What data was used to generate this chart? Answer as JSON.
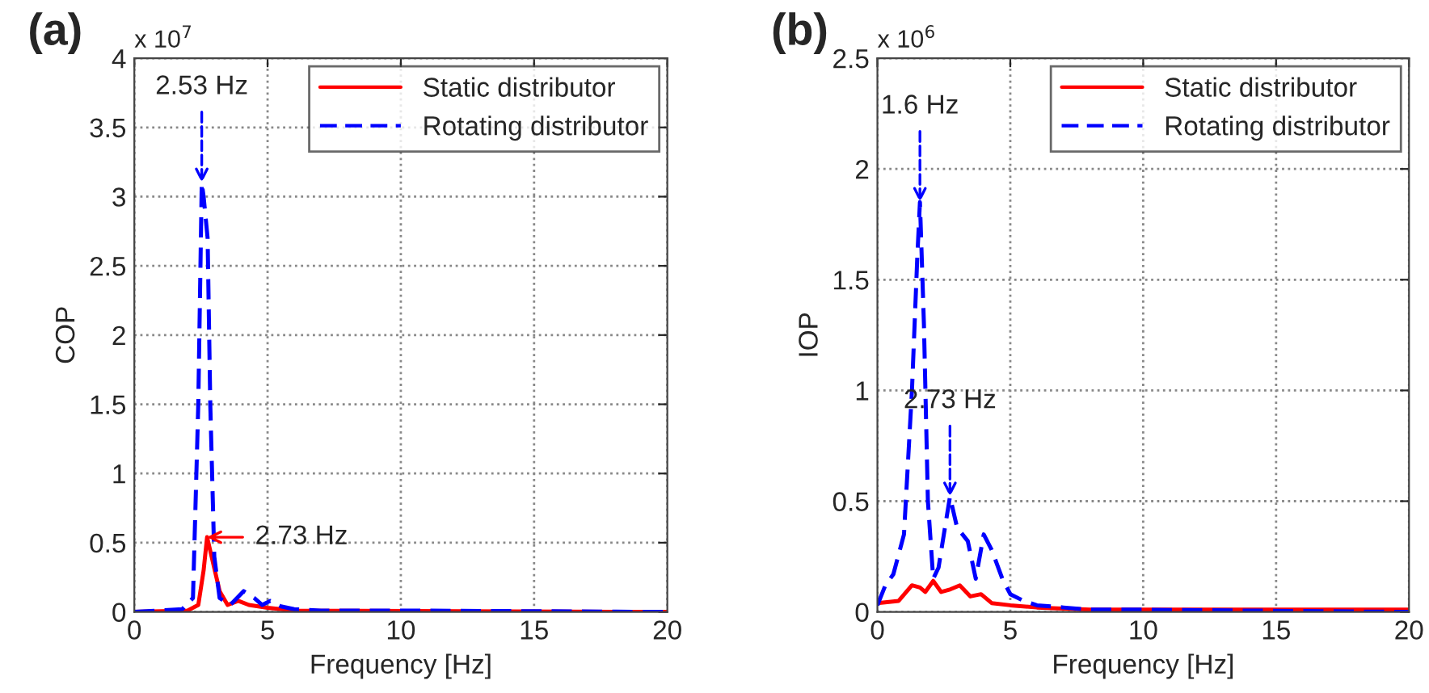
{
  "chart_data": [
    {
      "type": "line",
      "title": "(a)",
      "xlabel": "Frequency [Hz]",
      "ylabel": "COP",
      "xlim": [
        0,
        20
      ],
      "xticks": [
        0,
        5,
        10,
        15,
        20
      ],
      "ylim": [
        0,
        4
      ],
      "yticks": [
        0,
        0.5,
        1,
        1.5,
        2,
        2.5,
        3,
        3.5,
        4
      ],
      "grid": true,
      "legend": "top right",
      "annotations": [
        "x 10$^{7}$",
        {
          "text": "2.53 Hz",
          "x": 2.53,
          "y": 3.1
        },
        {
          "text": "2.73 Hz",
          "x": 2.73,
          "y": 0.54
        }
      ],
      "series": [
        {
          "name": "Static distributor",
          "color": "#ff0000",
          "line_style": "solid",
          "x": [
            0,
            2,
            2.4,
            2.6,
            2.73,
            2.9,
            3.2,
            3.5,
            3.9,
            4.3,
            5,
            6,
            20
          ],
          "values": [
            0,
            0.01,
            0.05,
            0.3,
            0.54,
            0.4,
            0.15,
            0.05,
            0.08,
            0.05,
            0.03,
            0.01,
            0
          ]
        },
        {
          "name": "Rotating distributor",
          "color": "#0000ff",
          "line_style": "dashed",
          "x": [
            0,
            1,
            1.8,
            2.2,
            2.4,
            2.53,
            2.6,
            2.75,
            2.85,
            3,
            3.2,
            3.6,
            4.1,
            4.5,
            4.8,
            5.1,
            5.5,
            6,
            7,
            10,
            20
          ],
          "values": [
            0,
            0.01,
            0.02,
            0.1,
            1.5,
            3.1,
            3.0,
            2.7,
            1.5,
            0.4,
            0.1,
            0.05,
            0.15,
            0.1,
            0.05,
            0.08,
            0.04,
            0.02,
            0.01,
            0.01,
            0
          ]
        }
      ]
    },
    {
      "type": "line",
      "title": "(b)",
      "xlabel": "Frequency [Hz]",
      "ylabel": "IOP",
      "xlim": [
        0,
        20
      ],
      "xticks": [
        0,
        5,
        10,
        15,
        20
      ],
      "ylim": [
        0,
        2.5
      ],
      "yticks": [
        0,
        0.5,
        1,
        1.5,
        2,
        2.5
      ],
      "grid": true,
      "legend": "top right",
      "annotations": [
        "x 10$^{6}$",
        {
          "text": "1.6 Hz",
          "x": 1.6,
          "y": 1.85
        },
        {
          "text": "2.73 Hz",
          "x": 2.73,
          "y": 0.52
        }
      ],
      "series": [
        {
          "name": "Static distributor",
          "color": "#ff0000",
          "line_style": "solid",
          "x": [
            0,
            0.8,
            1.3,
            1.6,
            1.8,
            2.1,
            2.4,
            2.7,
            3.1,
            3.5,
            3.9,
            4.3,
            5,
            6,
            8,
            20
          ],
          "values": [
            0.04,
            0.05,
            0.12,
            0.11,
            0.09,
            0.14,
            0.09,
            0.1,
            0.12,
            0.07,
            0.08,
            0.04,
            0.03,
            0.02,
            0.01,
            0.01
          ]
        },
        {
          "name": "Rotating distributor",
          "color": "#0000ff",
          "line_style": "dashed",
          "x": [
            0,
            0.3,
            0.6,
            1,
            1.3,
            1.5,
            1.6,
            1.75,
            1.9,
            2.1,
            2.3,
            2.5,
            2.73,
            3,
            3.4,
            3.7,
            4,
            4.3,
            4.7,
            5,
            5.5,
            6,
            7,
            8,
            10,
            20
          ],
          "values": [
            0.03,
            0.12,
            0.17,
            0.35,
            1.0,
            1.6,
            1.85,
            1.3,
            0.5,
            0.15,
            0.2,
            0.35,
            0.52,
            0.38,
            0.32,
            0.15,
            0.35,
            0.28,
            0.15,
            0.08,
            0.05,
            0.03,
            0.02,
            0.01,
            0.01,
            0
          ]
        }
      ]
    }
  ]
}
